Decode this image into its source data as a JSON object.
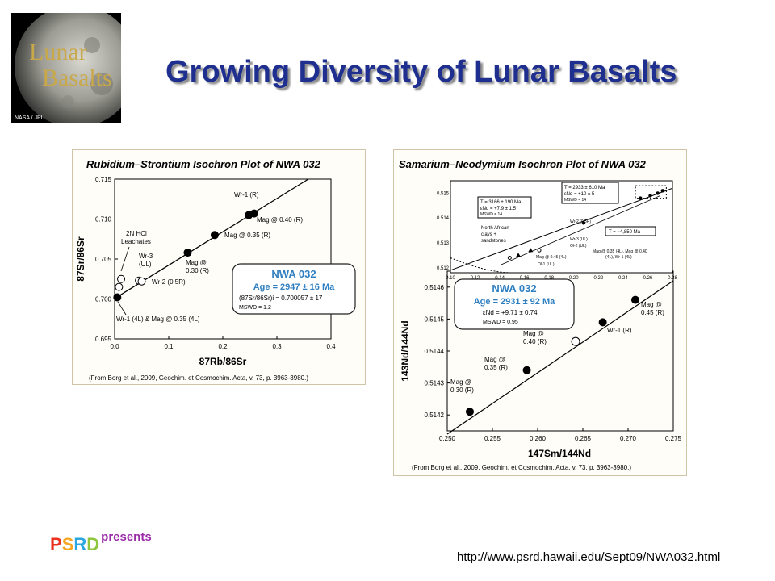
{
  "slide": {
    "title": "Growing Diversity of Lunar Basalts",
    "logo_text": [
      "Lunar",
      "Basalts"
    ],
    "logo_credit": "NASA / JPL",
    "footer_brand_letters": [
      "P",
      "S",
      "R",
      "D"
    ],
    "footer_brand_colors": [
      "#e8321e",
      "#f5a623",
      "#2aa7e0",
      "#8fc63f"
    ],
    "footer_presents": "presents",
    "url": "http://www.psrd.hawaii.edu/Sept09/NWA032.html"
  },
  "chart_data": [
    {
      "type": "scatter",
      "title": "Rubidium–Strontium Isochron Plot of NWA 032",
      "xlabel": "87Rb/86Sr",
      "ylabel": "87Sr/86Sr",
      "xlim": [
        0.0,
        0.4
      ],
      "ylim": [
        0.695,
        0.715
      ],
      "xticks": [
        "0.0",
        "0.1",
        "0.2",
        "0.3",
        "0.4"
      ],
      "yticks": [
        "0.695",
        "0.700",
        "0.705",
        "0.710",
        "0.715"
      ],
      "isochron": [
        [
          0.0,
          0.700057
        ],
        [
          0.4,
          0.71675
        ]
      ],
      "series": [
        {
          "name": "filled",
          "points": [
            [
              0.005,
              0.7002
            ],
            [
              0.135,
              0.7058
            ],
            [
              0.185,
              0.708
            ],
            [
              0.248,
              0.7105
            ],
            [
              0.258,
              0.7107
            ]
          ]
        },
        {
          "name": "open",
          "points": [
            [
              0.012,
              0.7025
            ],
            [
              0.008,
              0.7015
            ],
            [
              0.045,
              0.7023
            ],
            [
              0.05,
              0.7022
            ]
          ]
        }
      ],
      "annotations": [
        {
          "text": "Wr-1 (R)"
        },
        {
          "text": "Mag @ 0.40 (R)"
        },
        {
          "text": "Mag @ 0.35 (R)"
        },
        {
          "text": "2N HCl"
        },
        {
          "text": "Leachates"
        },
        {
          "text": "Wr-3"
        },
        {
          "text": "(UL)"
        },
        {
          "text": "Mag @"
        },
        {
          "text": "0.30 (R)"
        },
        {
          "text": "Wr-2 (0.5R)"
        },
        {
          "text": "Wr-1 (4L) & Mag @ 0.35 (4L)"
        }
      ],
      "result_box": {
        "name": "NWA 032",
        "age": "Age = 2947 ± 16 Ma",
        "ratio": "(87Sr/86Sr)i = 0.700057 ± 17",
        "mswd": "MSWD = 1.2"
      },
      "citation": "(From Borg et al., 2009, Geochim. et Cosmochim. Acta, v. 73, p. 3963-3980.)"
    },
    {
      "type": "scatter",
      "title": "Samarium–Neodymium Isochron Plot of NWA 032",
      "xlabel": "147Sm/144Nd",
      "ylabel": "143Nd/144Nd",
      "xlim": [
        0.25,
        0.275
      ],
      "ylim": [
        0.51415,
        0.51465
      ],
      "xticks": [
        "0.250",
        "0.255",
        "0.260",
        "0.265",
        "0.270",
        "0.275"
      ],
      "yticks": [
        "0.5142",
        "0.5143",
        "0.5144",
        "0.5145",
        "0.5146"
      ],
      "isochron": [
        [
          0.25,
          0.51414
        ],
        [
          0.275,
          0.51462
        ]
      ],
      "series": [
        {
          "name": "filled",
          "points": [
            [
              0.2525,
              0.51421
            ],
            [
              0.2588,
              0.51434
            ],
            [
              0.2672,
              0.51449
            ],
            [
              0.2708,
              0.51456
            ]
          ]
        },
        {
          "name": "open",
          "points": [
            [
              0.2642,
              0.51443
            ]
          ]
        }
      ],
      "annotations": [
        {
          "text": "Mag @"
        },
        {
          "text": "0.30 (R)"
        },
        {
          "text": "Mag @"
        },
        {
          "text": "0.35 (R)"
        },
        {
          "text": "Mag @"
        },
        {
          "text": "0.40 (R)"
        },
        {
          "text": "Wr-1 (R)"
        },
        {
          "text": "Mag @"
        },
        {
          "text": "0.45 (R)"
        }
      ],
      "result_box": {
        "name": "NWA 032",
        "age": "Age = 2931 ± 92 Ma",
        "eps": "εNd = +9.71 ± 0.74",
        "mswd": "MSWD = 0.95"
      },
      "citation": "(From Borg et al., 2009, Geochim. et Cosmochim. Acta, v. 73, p. 3963-3980.)",
      "inset": {
        "xlim": [
          0.1,
          0.28
        ],
        "ylim": [
          0.5118,
          0.5155
        ],
        "xticks": [
          "0.10",
          "0.12",
          "0.14",
          "0.16",
          "0.18",
          "0.20",
          "0.22",
          "0.24",
          "0.26",
          "0.28"
        ],
        "yticks": [
          "0.515",
          "0.514",
          "0.513",
          "0.512"
        ],
        "labels": [
          "T = 2933 ± 610 Ma",
          "εNd = +10 ± 5",
          "MSWD = 14",
          "T = 3166 ± 190 Ma",
          "εNd = +7.9 ± 1.5",
          "MSWD = 14",
          "North African",
          "clays +",
          "sandstones",
          "T = ~4,850 Ma",
          "Wr-2 (0.5R)",
          "Wr-3 (UL)",
          "Ol-2 (UL)",
          "Ol-1 (UL)",
          "Mag @ 0.45 (4L)",
          "Mag @ 0.35 (4L), Mag @ 0.40",
          "(4L), Wr-1 (4L)"
        ]
      }
    }
  ]
}
